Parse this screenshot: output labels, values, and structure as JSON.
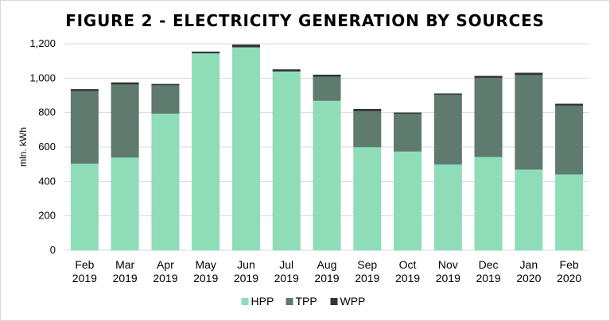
{
  "chart_data": {
    "type": "bar",
    "stacked": true,
    "title": "FIGURE 2 - ELECTRICITY GENERATION BY SOURCES",
    "ylabel": "mln. kWh",
    "xlabel": "",
    "ylim": [
      0,
      1200
    ],
    "yticks": [
      0,
      200,
      400,
      600,
      800,
      1000,
      1200
    ],
    "ytick_labels": [
      "0",
      "200",
      "400",
      "600",
      "800",
      "1,000",
      "1,200"
    ],
    "grid": true,
    "legend_position": "bottom",
    "categories": [
      [
        "Feb",
        "2019"
      ],
      [
        "Mar",
        "2019"
      ],
      [
        "Apr",
        "2019"
      ],
      [
        "May",
        "2019"
      ],
      [
        "Jun",
        "2019"
      ],
      [
        "Jul",
        "2019"
      ],
      [
        "Aug",
        "2019"
      ],
      [
        "Sep",
        "2019"
      ],
      [
        "Oct",
        "2019"
      ],
      [
        "Nov",
        "2019"
      ],
      [
        "Dec",
        "2019"
      ],
      [
        "Jan",
        "2020"
      ],
      [
        "Feb",
        "2020"
      ]
    ],
    "series": [
      {
        "name": "HPP",
        "color": "#8fdcb9",
        "values": [
          505,
          540,
          795,
          1145,
          1180,
          1040,
          870,
          600,
          575,
          500,
          543,
          470,
          442
        ]
      },
      {
        "name": "TPP",
        "color": "#5f7a6e",
        "values": [
          422,
          425,
          165,
          0,
          0,
          0,
          140,
          210,
          220,
          405,
          460,
          550,
          400
        ]
      },
      {
        "name": "WPP",
        "color": "#333333",
        "values": [
          8,
          9,
          5,
          8,
          14,
          10,
          9,
          10,
          4,
          5,
          9,
          10,
          8
        ]
      }
    ]
  }
}
